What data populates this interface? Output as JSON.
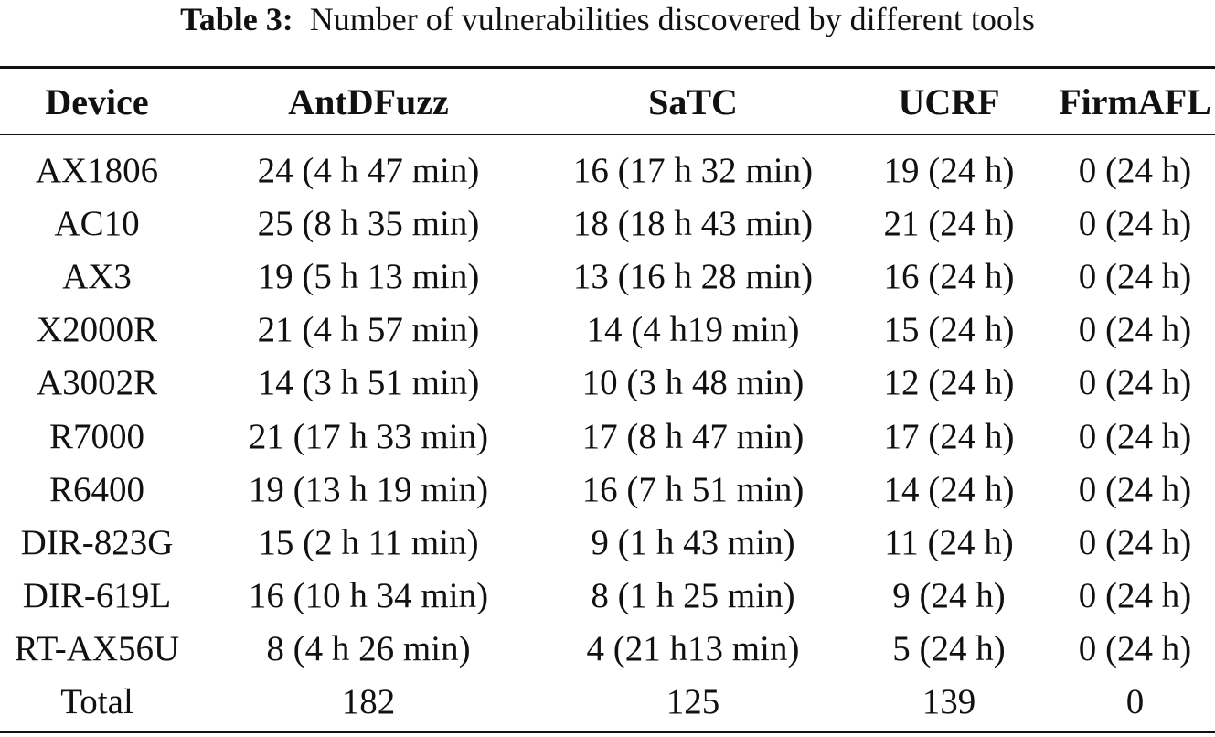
{
  "caption": {
    "label": "Table 3:",
    "text": "Number of vulnerabilities discovered by different tools"
  },
  "table": {
    "columns": [
      "Device",
      "AntDFuzz",
      "SaTC",
      "UCRF",
      "FirmAFL"
    ],
    "rows": [
      [
        "AX1806",
        "24 (4 h 47 min)",
        "16 (17 h 32 min)",
        "19 (24 h)",
        "0 (24 h)"
      ],
      [
        "AC10",
        "25 (8 h 35 min)",
        "18 (18 h 43 min)",
        "21 (24 h)",
        "0 (24 h)"
      ],
      [
        "AX3",
        "19 (5 h 13 min)",
        "13 (16 h 28 min)",
        "16 (24 h)",
        "0 (24 h)"
      ],
      [
        "X2000R",
        "21 (4 h 57 min)",
        "14 (4 h19 min)",
        "15 (24 h)",
        "0 (24 h)"
      ],
      [
        "A3002R",
        "14 (3 h 51 min)",
        "10 (3 h 48 min)",
        "12 (24 h)",
        "0 (24 h)"
      ],
      [
        "R7000",
        "21 (17 h 33 min)",
        "17 (8 h 47 min)",
        "17 (24 h)",
        "0 (24 h)"
      ],
      [
        "R6400",
        "19 (13 h 19 min)",
        "16 (7 h 51 min)",
        "14 (24 h)",
        "0 (24 h)"
      ],
      [
        "DIR-823G",
        "15 (2 h 11 min)",
        "9 (1 h 43 min)",
        "11 (24 h)",
        "0 (24 h)"
      ],
      [
        "DIR-619L",
        "16 (10 h 34 min)",
        "8 (1 h 25 min)",
        "9 (24 h)",
        "0 (24 h)"
      ],
      [
        "RT-AX56U",
        "8 (4 h 26 min)",
        "4 (21 h13 min)",
        "5 (24 h)",
        "0 (24 h)"
      ],
      [
        "Total",
        "182",
        "125",
        "139",
        "0"
      ]
    ]
  }
}
